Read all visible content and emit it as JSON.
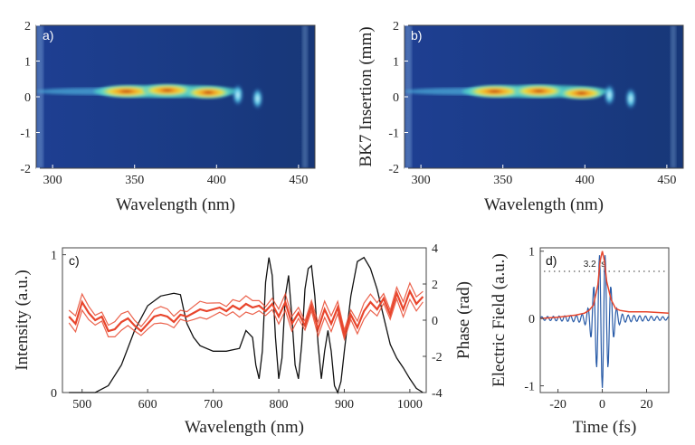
{
  "chart_data": [
    {
      "panel": "a)",
      "type": "heatmap",
      "xlabel": "Wavelength (nm)",
      "ylabel": "",
      "xlim": [
        290,
        460
      ],
      "ylim": [
        -2,
        2
      ],
      "xticks": [
        300,
        350,
        400,
        450
      ],
      "yticks": [
        2,
        1,
        0,
        -1,
        -2
      ],
      "trace_center": 0.15,
      "blobs": [
        {
          "x": 345,
          "y": 0.15,
          "intensity": 1.0
        },
        {
          "x": 370,
          "y": 0.18,
          "intensity": 0.85
        },
        {
          "x": 395,
          "y": 0.12,
          "intensity": 0.7
        },
        {
          "x": 413,
          "y": 0.05,
          "intensity": 0.55
        },
        {
          "x": 425,
          "y": -0.05,
          "intensity": 0.45
        }
      ]
    },
    {
      "panel": "b)",
      "type": "heatmap",
      "xlabel": "Wavelength (nm)",
      "ylabel": "BK7 Insertion (mm)",
      "xlim": [
        290,
        460
      ],
      "ylim": [
        -2,
        2
      ],
      "xticks": [
        300,
        350,
        400,
        450
      ],
      "yticks": [
        2,
        1,
        0,
        -1,
        -2
      ],
      "trace_center": 0.15,
      "blobs": [
        {
          "x": 345,
          "y": 0.15,
          "intensity": 1.0
        },
        {
          "x": 372,
          "y": 0.16,
          "intensity": 0.85
        },
        {
          "x": 398,
          "y": 0.1,
          "intensity": 0.7
        },
        {
          "x": 415,
          "y": 0.05,
          "intensity": 0.55
        },
        {
          "x": 428,
          "y": -0.05,
          "intensity": 0.45
        }
      ]
    },
    {
      "panel": "c)",
      "type": "line",
      "xlabel": "Wavelength (nm)",
      "ylabel": "Intensity (a.u.)",
      "ylabel_right": "Phase (rad)",
      "xlim": [
        470,
        1025
      ],
      "ylim": [
        0,
        1.05
      ],
      "ylim_right": [
        -4,
        4
      ],
      "xticks": [
        500,
        600,
        700,
        800,
        900,
        1000
      ],
      "yticks": [
        0,
        1
      ],
      "yticks_right": [
        4,
        2,
        0,
        -2,
        -4
      ],
      "series": [
        {
          "name": "Intensity",
          "axis": "left",
          "color": "#111111",
          "x": [
            480,
            500,
            520,
            540,
            560,
            580,
            600,
            620,
            640,
            650,
            655,
            660,
            670,
            680,
            700,
            720,
            740,
            750,
            760,
            765,
            770,
            775,
            780,
            785,
            790,
            795,
            800,
            805,
            810,
            815,
            820,
            825,
            830,
            835,
            840,
            845,
            850,
            855,
            860,
            865,
            870,
            875,
            880,
            885,
            890,
            895,
            900,
            910,
            920,
            930,
            940,
            950,
            960,
            970,
            980,
            990,
            1000,
            1010,
            1020
          ],
          "y": [
            0.0,
            0.0,
            0.0,
            0.05,
            0.2,
            0.45,
            0.63,
            0.7,
            0.72,
            0.71,
            0.6,
            0.5,
            0.4,
            0.34,
            0.3,
            0.3,
            0.32,
            0.45,
            0.4,
            0.2,
            0.1,
            0.3,
            0.8,
            0.98,
            0.85,
            0.4,
            0.1,
            0.25,
            0.7,
            0.85,
            0.55,
            0.2,
            0.1,
            0.35,
            0.75,
            0.9,
            0.92,
            0.7,
            0.35,
            0.1,
            0.3,
            0.45,
            0.3,
            0.05,
            0.0,
            0.08,
            0.3,
            0.7,
            0.95,
            0.98,
            0.9,
            0.75,
            0.55,
            0.35,
            0.25,
            0.18,
            0.1,
            0.03,
            0.0
          ]
        },
        {
          "name": "Phase",
          "axis": "right",
          "color": "#e8452c",
          "x": [
            480,
            490,
            500,
            510,
            520,
            530,
            540,
            550,
            560,
            570,
            580,
            590,
            600,
            610,
            620,
            630,
            640,
            650,
            660,
            670,
            680,
            690,
            700,
            710,
            720,
            730,
            740,
            750,
            760,
            770,
            780,
            790,
            800,
            810,
            820,
            830,
            840,
            850,
            860,
            870,
            880,
            890,
            900,
            910,
            920,
            930,
            940,
            950,
            960,
            970,
            980,
            990,
            1000,
            1010,
            1020
          ],
          "y": [
            0.2,
            -0.2,
            1.0,
            0.4,
            0.0,
            0.2,
            -0.6,
            -0.5,
            -0.1,
            0.1,
            -0.3,
            -0.6,
            -0.2,
            0.2,
            0.3,
            0.2,
            -0.1,
            0.3,
            0.2,
            0.4,
            0.6,
            0.5,
            0.6,
            0.7,
            0.5,
            0.8,
            0.6,
            0.9,
            0.7,
            0.8,
            0.5,
            0.9,
            0.2,
            1.0,
            -0.2,
            0.4,
            -0.3,
            0.8,
            -0.5,
            0.6,
            -0.2,
            0.7,
            -0.8,
            0.3,
            -0.4,
            0.5,
            1.0,
            0.6,
            1.2,
            0.3,
            1.5,
            0.6,
            1.6,
            0.9,
            1.3
          ]
        }
      ]
    },
    {
      "panel": "d)",
      "type": "line",
      "xlabel": "Time (fs)",
      "ylabel": "Electric Field (a.u.)",
      "xlim": [
        -28,
        30
      ],
      "ylim": [
        -1.1,
        1.05
      ],
      "xticks": [
        -20,
        0,
        20
      ],
      "yticks": [
        1,
        0,
        -1
      ],
      "annotation": "3.2 fs",
      "annotation_level": 0.7,
      "series": [
        {
          "name": "Envelope",
          "color": "#e8452c",
          "x": [
            -28,
            -20,
            -12,
            -8,
            -6,
            -4,
            -2,
            -1,
            0,
            1,
            2,
            4,
            6,
            8,
            12,
            20,
            30
          ],
          "y": [
            0.0,
            0.02,
            0.05,
            0.08,
            0.12,
            0.2,
            0.5,
            0.85,
            1.0,
            0.85,
            0.55,
            0.28,
            0.15,
            0.12,
            0.1,
            0.1,
            0.08
          ]
        },
        {
          "name": "Field",
          "color": "#2a5ca8",
          "x": [
            -28,
            -26,
            -24,
            -22,
            -20,
            -18,
            -16,
            -14,
            -12,
            -10,
            -8,
            -6,
            -5,
            -4,
            -3,
            -2,
            -1.5,
            -1,
            -0.5,
            0,
            0.5,
            1,
            1.5,
            2,
            3,
            4,
            5,
            6,
            8,
            10,
            12,
            14,
            16,
            18,
            20,
            22,
            24,
            26,
            28,
            30
          ],
          "y": [
            0.02,
            -0.02,
            0.03,
            -0.03,
            0.04,
            -0.04,
            0.05,
            -0.05,
            0.06,
            -0.07,
            0.08,
            -0.12,
            0.15,
            -0.2,
            0.3,
            -0.45,
            0.6,
            -0.3,
            0.2,
            -1.0,
            0.7,
            -0.4,
            0.3,
            -0.5,
            0.25,
            -0.2,
            0.15,
            -0.15,
            0.12,
            -0.12,
            0.1,
            -0.1,
            0.1,
            -0.1,
            0.08,
            -0.08,
            0.06,
            -0.06,
            0.05,
            -0.04
          ]
        }
      ]
    }
  ]
}
